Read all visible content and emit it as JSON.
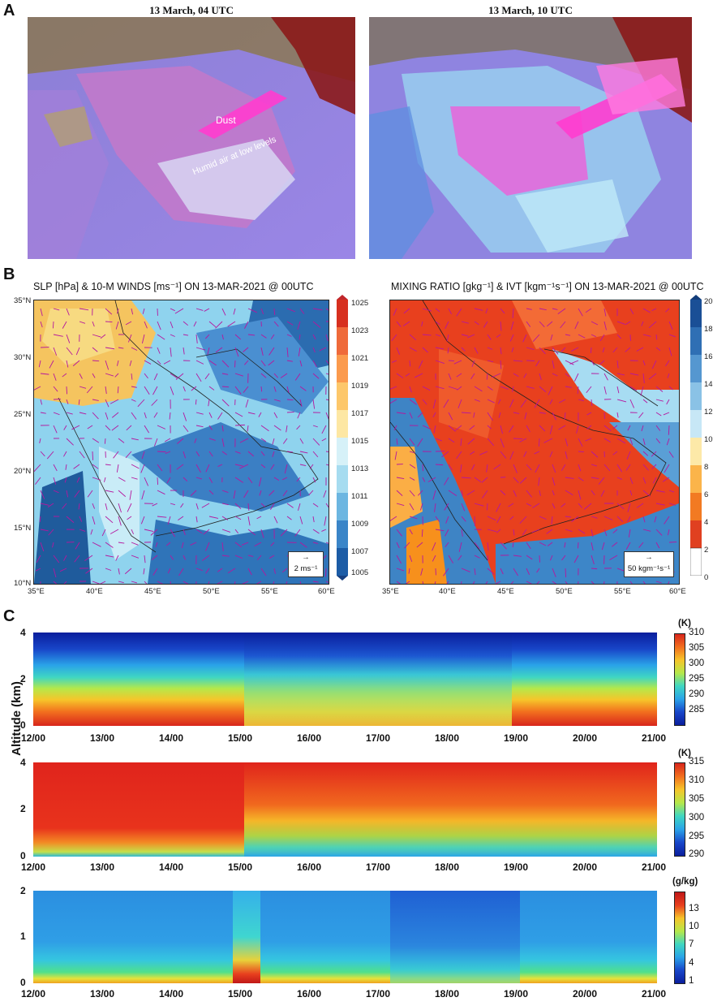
{
  "panel_a": {
    "letter": "A",
    "left_title": "13 March, 04 UTC",
    "right_title": "13 March, 10 UTC",
    "annotation_dust": "Dust",
    "annotation_humid": "Humid air at low levels"
  },
  "panel_b": {
    "letter": "B",
    "left_title": "SLP [hPa] & 10-M WINDS [ms⁻¹] ON 13-MAR-2021 @ 00UTC",
    "right_title": "MIXING RATIO [gkg⁻¹] & IVT [kgm⁻¹s⁻¹] ON 13-MAR-2021 @ 00UTC",
    "lat_ticks": [
      "35°N",
      "30°N",
      "25°N",
      "20°N",
      "15°N",
      "10°N"
    ],
    "lon_ticks": [
      "35°E",
      "40°E",
      "45°E",
      "50°E",
      "55°E",
      "60°E"
    ],
    "left_colorbar": [
      "1025",
      "1023",
      "1021",
      "1019",
      "1017",
      "1015",
      "1013",
      "1011",
      "1009",
      "1007",
      "1005"
    ],
    "right_colorbar": [
      "20",
      "18",
      "16",
      "14",
      "12",
      "10",
      "8",
      "6",
      "4",
      "2",
      "0"
    ],
    "left_legend": "2 ms⁻¹",
    "right_legend": "50 kgm⁻¹s⁻¹",
    "colors": {
      "slp_high": "#e34a2a",
      "slp_low": "#1b4f96",
      "wind": "#b5179e",
      "mr_high": "#e8421f",
      "mr_low": "#2166ac"
    }
  },
  "panel_c": {
    "letter": "C",
    "ylabel": "Altitude (km)",
    "x_ticks": [
      "12/00",
      "13/00",
      "14/00",
      "15/00",
      "16/00",
      "17/00",
      "18/00",
      "19/00",
      "20/00",
      "21/00"
    ],
    "strips": [
      {
        "unit": "(K)",
        "y_ticks": [
          "4",
          "2",
          "0"
        ],
        "cbar": [
          "310",
          "305",
          "300",
          "295",
          "290",
          "285"
        ]
      },
      {
        "unit": "(K)",
        "y_ticks": [
          "4",
          "2",
          "0"
        ],
        "cbar": [
          "315",
          "310",
          "305",
          "300",
          "295",
          "290"
        ]
      },
      {
        "unit": "(g/kg)",
        "y_ticks": [
          "2",
          "1",
          "0"
        ],
        "cbar": [
          "13",
          "10",
          "7",
          "4",
          "1"
        ]
      }
    ]
  },
  "chart_data": [
    {
      "type": "heatmap",
      "title": "13 March, 04 UTC",
      "note": "satellite image"
    },
    {
      "type": "heatmap",
      "title": "13 March, 10 UTC",
      "note": "satellite image"
    },
    {
      "type": "heatmap",
      "title": "SLP [hPa] & 10-M WINDS [ms-1] ON 13-MAR-2021 @ 00UTC",
      "xlim": [
        35,
        60
      ],
      "ylim": [
        10,
        35
      ],
      "colorbar": [
        1005,
        1025
      ]
    },
    {
      "type": "heatmap",
      "title": "MIXING RATIO [gkg-1] & IVT [kgm-1s-1] ON 13-MAR-2021 @ 00UTC",
      "xlim": [
        35,
        60
      ],
      "ylim": [
        10,
        35
      ],
      "colorbar": [
        0,
        20
      ]
    },
    {
      "type": "heatmap",
      "ylabel": "Altitude (km)",
      "ylim": [
        0,
        4
      ],
      "colorbar": [
        285,
        310
      ],
      "unit": "(K)"
    },
    {
      "type": "heatmap",
      "ylabel": "Altitude (km)",
      "ylim": [
        0,
        4
      ],
      "colorbar": [
        290,
        315
      ],
      "unit": "(K)"
    },
    {
      "type": "heatmap",
      "ylabel": "Altitude (km)",
      "ylim": [
        0,
        2
      ],
      "colorbar": [
        1,
        13
      ],
      "unit": "(g/kg)"
    }
  ]
}
